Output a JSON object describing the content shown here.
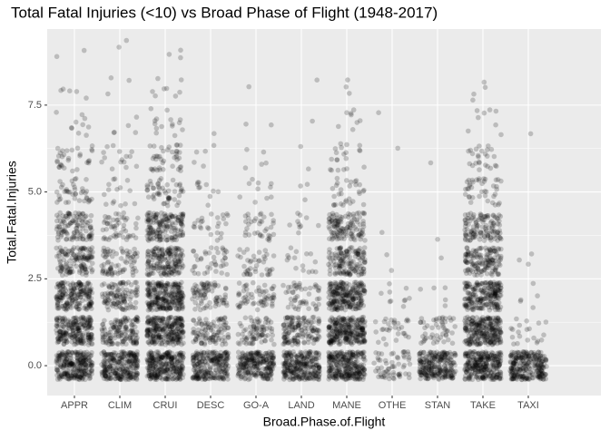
{
  "chart_data": {
    "type": "jitter",
    "title": "Total Fatal Injuries (<10) vs Broad Phase of Flight (1948-2017)",
    "x_label": "Broad.Phase.of.Flight",
    "y_label": "Total.Fatal.Injuries",
    "categories": [
      "APPR",
      "CLIM",
      "CRUI",
      "DESC",
      "GO-A",
      "LAND",
      "MANE",
      "OTHE",
      "STAN",
      "TAKE",
      "TAXI"
    ],
    "levels": [
      0,
      1,
      2,
      3,
      4,
      5,
      6,
      7,
      8,
      9
    ],
    "counts": [
      [
        260,
        220,
        190,
        130,
        110,
        40,
        30,
        10,
        5,
        2
      ],
      [
        260,
        140,
        110,
        75,
        50,
        15,
        15,
        5,
        3,
        2
      ],
      [
        280,
        260,
        250,
        170,
        160,
        50,
        40,
        15,
        8,
        3
      ],
      [
        240,
        100,
        80,
        40,
        25,
        10,
        5,
        1,
        0,
        0
      ],
      [
        240,
        80,
        60,
        40,
        35,
        10,
        5,
        2,
        1,
        0
      ],
      [
        260,
        140,
        50,
        15,
        10,
        3,
        2,
        1,
        1,
        0
      ],
      [
        280,
        260,
        230,
        140,
        120,
        30,
        20,
        8,
        3,
        0
      ],
      [
        60,
        30,
        10,
        2,
        1,
        0,
        1,
        1,
        0,
        0
      ],
      [
        240,
        50,
        5,
        1,
        1,
        0,
        1,
        0,
        0,
        0
      ],
      [
        280,
        250,
        210,
        140,
        120,
        40,
        25,
        8,
        4,
        0
      ],
      [
        260,
        20,
        5,
        3,
        0,
        0,
        0,
        1,
        0,
        0
      ]
    ],
    "color": "#000000",
    "opacity": 0.2,
    "jitter": 0.4,
    "ylim": [
      -0.86,
      9.69
    ],
    "yticks": [
      {
        "value": 0,
        "label": "0.0"
      },
      2.5,
      {
        "value": 5,
        "label": "5.0"
      },
      7.5
    ],
    "grid": true
  }
}
